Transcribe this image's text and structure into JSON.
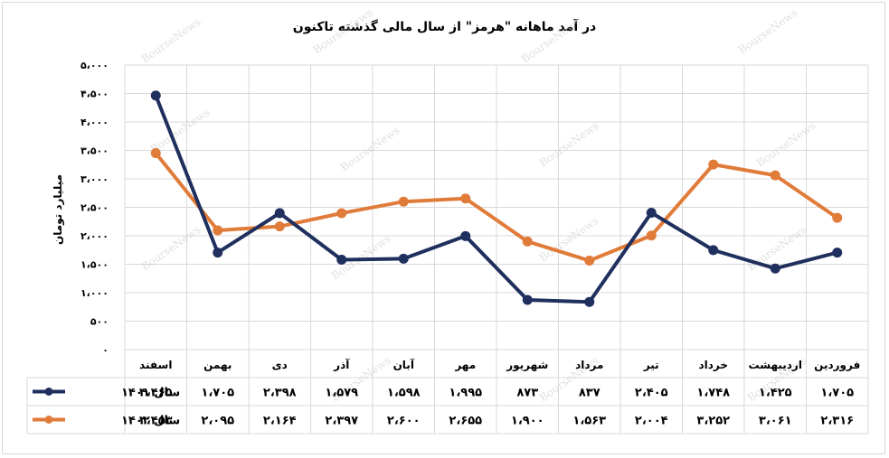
{
  "chart_data": {
    "type": "line",
    "title": "در آمد ماهانه \"هرمز\" از سال مالی گذشته تاکنون",
    "ylabel": "میلیارد تومان",
    "ylim": [
      0,
      5000
    ],
    "yticks": [
      0,
      500,
      1000,
      1500,
      2000,
      2500,
      3000,
      3500,
      4000,
      4500,
      5000
    ],
    "ytick_labels": [
      "۰",
      "۵۰۰",
      "۱،۰۰۰",
      "۱،۵۰۰",
      "۲،۰۰۰",
      "۲،۵۰۰",
      "۳،۰۰۰",
      "۳،۵۰۰",
      "۴،۰۰۰",
      "۴،۵۰۰",
      "۵،۰۰۰"
    ],
    "categories": [
      "فروردین",
      "اردیبهشت",
      "خرداد",
      "تیر",
      "مرداد",
      "شهریور",
      "مهر",
      "آبان",
      "آذر",
      "دی",
      "بهمن",
      "اسفند"
    ],
    "grid": true,
    "legend": "bottom-table",
    "series": [
      {
        "name": "سال ۱۴۰۱",
        "color": "#1f2f5e",
        "values": [
          1705,
          1425,
          1748,
          2405,
          837,
          873,
          1995,
          1598,
          1579,
          2398,
          1705,
          4465
        ],
        "labels": [
          "۱،۷۰۵",
          "۱،۴۲۵",
          "۱،۷۴۸",
          "۲،۴۰۵",
          "۸۳۷",
          "۸۷۳",
          "۱،۹۹۵",
          "۱،۵۹۸",
          "۱،۵۷۹",
          "۲،۳۹۸",
          "۱،۷۰۵",
          "۴،۴۶۵"
        ]
      },
      {
        "name": "سال ۱۴۰۲",
        "color": "#e07b39",
        "values": [
          2316,
          3061,
          3252,
          2004,
          1563,
          1900,
          2655,
          2600,
          2397,
          2164,
          2095,
          3453
        ],
        "labels": [
          "۲،۳۱۶",
          "۳،۰۶۱",
          "۳،۲۵۲",
          "۲،۰۰۴",
          "۱،۵۶۳",
          "۱،۹۰۰",
          "۲،۶۵۵",
          "۲،۶۰۰",
          "۲،۳۹۷",
          "۲،۱۶۴",
          "۲،۰۹۵",
          "۳،۴۵۳"
        ]
      }
    ],
    "watermark_text": "BourseNews"
  }
}
